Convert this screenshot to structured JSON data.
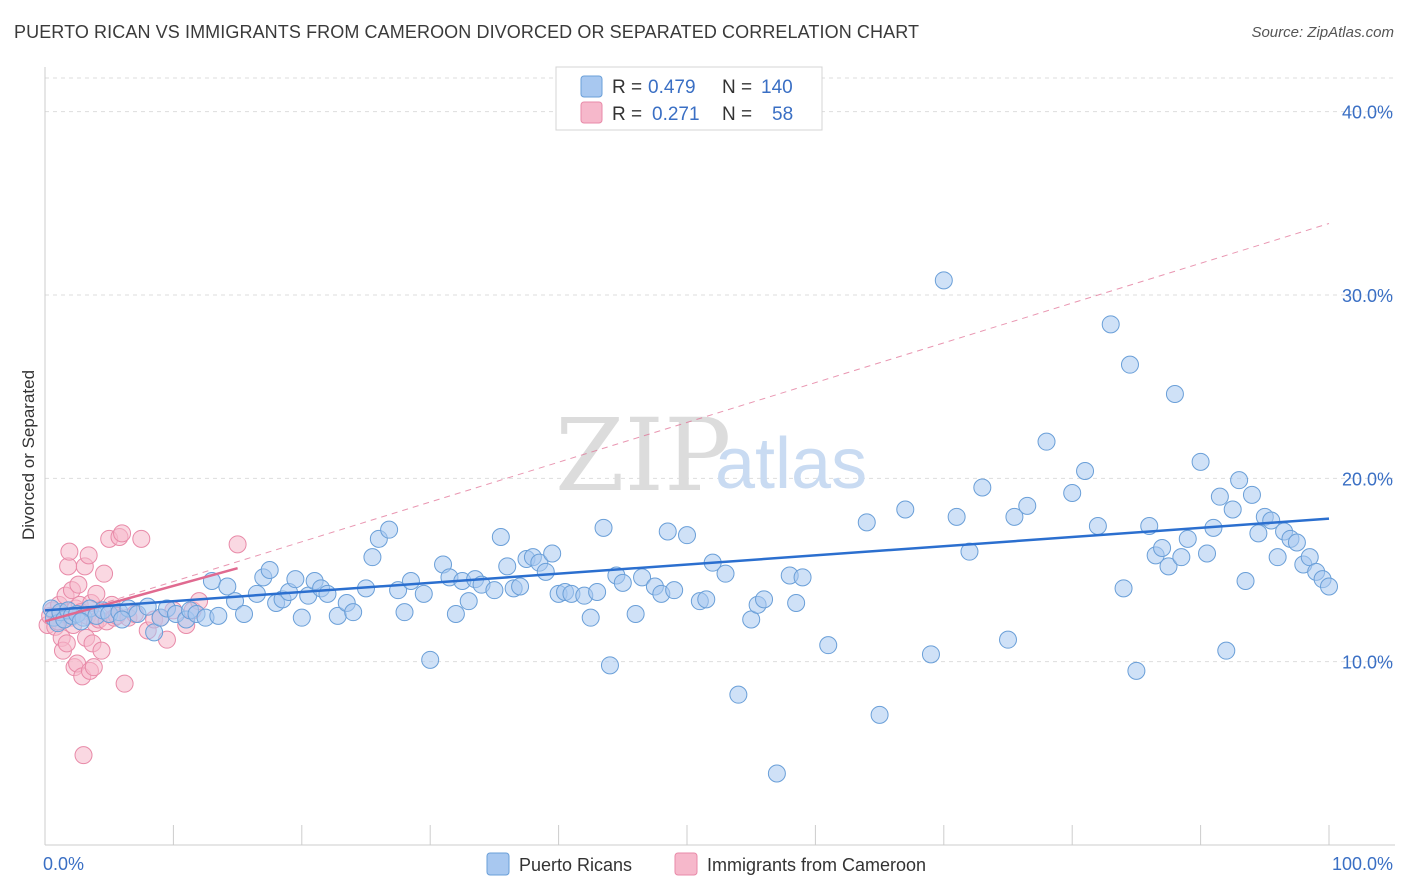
{
  "header": {
    "title": "PUERTO RICAN VS IMMIGRANTS FROM CAMEROON DIVORCED OR SEPARATED CORRELATION CHART",
    "source": "Source: ZipAtlas.com"
  },
  "watermark": {
    "zip": "ZIP",
    "atlas": "atlas"
  },
  "legend": {
    "rows": [
      {
        "r_label": "R =",
        "r_value": "0.479",
        "n_label": "N =",
        "n_value": "140",
        "color": "#a8c8f0"
      },
      {
        "r_label": "R =",
        "r_value": "0.271",
        "n_label": "N =",
        "n_value": "58",
        "color": "#f6b8cb"
      }
    ]
  },
  "bottom_legend": [
    {
      "label": "Puerto Ricans",
      "color": "#a8c8f0"
    },
    {
      "label": "Immigrants from Cameroon",
      "color": "#f6b8cb"
    }
  ],
  "colors": {
    "blue_fill": "#a8c8f0",
    "blue_stroke": "#6a9fd8",
    "blue_line": "#2b6fcf",
    "pink_fill": "#f6b8cb",
    "pink_stroke": "#e88aa8",
    "pink_line": "#e06a90",
    "grid": "#dddddd",
    "axis_text": "#3a6fc4"
  },
  "chart_data": {
    "type": "scatter",
    "title": "PUERTO RICAN VS IMMIGRANTS FROM CAMEROON DIVORCED OR SEPARATED CORRELATION CHART",
    "xlabel": "",
    "ylabel": "Divorced or Separated",
    "xlim": [
      0,
      100
    ],
    "ylim": [
      0,
      42
    ],
    "x_tick_labels": [
      "0.0%",
      "100.0%"
    ],
    "y_ticks": [
      10,
      20,
      30,
      40
    ],
    "y_tick_labels": [
      "10.0%",
      "20.0%",
      "30.0%",
      "40.0%"
    ],
    "grid": true,
    "legend_position": "top-center",
    "series": [
      {
        "name": "Puerto Ricans",
        "color": "#a8c8f0",
        "R": 0.479,
        "N": 140,
        "trend": {
          "x": [
            0,
            100
          ],
          "y": [
            12.8,
            17.8
          ]
        },
        "points": [
          [
            0.5,
            12.9
          ],
          [
            0.7,
            12.4
          ],
          [
            1.0,
            12.1
          ],
          [
            1.2,
            12.7
          ],
          [
            1.5,
            12.3
          ],
          [
            1.8,
            12.8
          ],
          [
            2.1,
            12.5
          ],
          [
            2.5,
            12.6
          ],
          [
            3.0,
            12.4
          ],
          [
            3.5,
            12.9
          ],
          [
            4.0,
            12.5
          ],
          [
            4.5,
            12.8
          ],
          [
            5.0,
            12.6
          ],
          [
            5.8,
            12.7
          ],
          [
            6.5,
            12.9
          ],
          [
            7.2,
            12.6
          ],
          [
            8.0,
            13.0
          ],
          [
            8.5,
            11.6
          ],
          [
            9.0,
            12.4
          ],
          [
            9.5,
            12.9
          ],
          [
            10.2,
            12.6
          ],
          [
            11.0,
            12.3
          ],
          [
            11.3,
            12.8
          ],
          [
            11.8,
            12.6
          ],
          [
            12.5,
            12.4
          ],
          [
            13.0,
            14.4
          ],
          [
            13.5,
            12.5
          ],
          [
            14.2,
            14.1
          ],
          [
            14.8,
            13.3
          ],
          [
            15.5,
            12.6
          ],
          [
            16.5,
            13.7
          ],
          [
            17.0,
            14.6
          ],
          [
            17.5,
            15.0
          ],
          [
            18.0,
            13.2
          ],
          [
            18.5,
            13.4
          ],
          [
            19.0,
            13.8
          ],
          [
            19.5,
            14.5
          ],
          [
            20.0,
            12.4
          ],
          [
            20.5,
            13.6
          ],
          [
            21.0,
            14.4
          ],
          [
            21.5,
            14.0
          ],
          [
            22.0,
            13.7
          ],
          [
            22.8,
            12.5
          ],
          [
            23.5,
            13.2
          ],
          [
            24.0,
            12.7
          ],
          [
            25.0,
            14.0
          ],
          [
            25.5,
            15.7
          ],
          [
            26.0,
            16.7
          ],
          [
            26.8,
            17.2
          ],
          [
            27.5,
            13.9
          ],
          [
            28.0,
            12.7
          ],
          [
            28.5,
            14.4
          ],
          [
            29.5,
            13.7
          ],
          [
            30.0,
            10.1
          ],
          [
            31.0,
            15.3
          ],
          [
            31.5,
            14.6
          ],
          [
            32.0,
            12.6
          ],
          [
            32.5,
            14.4
          ],
          [
            33.0,
            13.3
          ],
          [
            33.5,
            14.5
          ],
          [
            34.0,
            14.2
          ],
          [
            35.0,
            13.9
          ],
          [
            35.5,
            16.8
          ],
          [
            36.0,
            15.2
          ],
          [
            36.5,
            14.0
          ],
          [
            37.0,
            14.1
          ],
          [
            37.5,
            15.6
          ],
          [
            38.0,
            15.7
          ],
          [
            38.5,
            15.4
          ],
          [
            39.0,
            14.9
          ],
          [
            39.5,
            15.9
          ],
          [
            40.0,
            13.7
          ],
          [
            40.5,
            13.8
          ],
          [
            41.0,
            13.7
          ],
          [
            42.0,
            13.6
          ],
          [
            42.5,
            12.4
          ],
          [
            43.0,
            13.8
          ],
          [
            43.5,
            17.3
          ],
          [
            44.0,
            9.8
          ],
          [
            44.5,
            14.7
          ],
          [
            45.0,
            14.3
          ],
          [
            46.0,
            12.6
          ],
          [
            46.5,
            14.6
          ],
          [
            47.5,
            14.1
          ],
          [
            48.0,
            13.7
          ],
          [
            48.5,
            17.1
          ],
          [
            49.0,
            13.9
          ],
          [
            50.0,
            16.9
          ],
          [
            51.0,
            13.3
          ],
          [
            51.5,
            13.4
          ],
          [
            52.0,
            15.4
          ],
          [
            53.0,
            14.8
          ],
          [
            54.0,
            8.2
          ],
          [
            55.0,
            12.3
          ],
          [
            55.5,
            13.1
          ],
          [
            56.0,
            13.4
          ],
          [
            57.0,
            3.9
          ],
          [
            58.0,
            14.7
          ],
          [
            58.5,
            13.2
          ],
          [
            59.0,
            14.6
          ],
          [
            61.0,
            10.9
          ],
          [
            64.0,
            17.6
          ],
          [
            65.0,
            7.1
          ],
          [
            67.0,
            18.3
          ],
          [
            69.0,
            10.4
          ],
          [
            70.0,
            30.8
          ],
          [
            71.0,
            17.9
          ],
          [
            72.0,
            16.0
          ],
          [
            73.0,
            19.5
          ],
          [
            75.0,
            11.2
          ],
          [
            75.5,
            17.9
          ],
          [
            76.5,
            18.5
          ],
          [
            78.0,
            22.0
          ],
          [
            80.0,
            19.2
          ],
          [
            81.0,
            20.4
          ],
          [
            82.0,
            17.4
          ],
          [
            83.0,
            28.4
          ],
          [
            84.0,
            14.0
          ],
          [
            84.5,
            26.2
          ],
          [
            85.0,
            9.5
          ],
          [
            86.0,
            17.4
          ],
          [
            86.5,
            15.8
          ],
          [
            87.0,
            16.2
          ],
          [
            87.5,
            15.2
          ],
          [
            88.0,
            24.6
          ],
          [
            88.5,
            15.7
          ],
          [
            89.0,
            16.7
          ],
          [
            90.0,
            20.9
          ],
          [
            90.5,
            15.9
          ],
          [
            91.0,
            17.3
          ],
          [
            91.5,
            19.0
          ],
          [
            92.0,
            10.6
          ],
          [
            92.5,
            18.3
          ],
          [
            93.0,
            19.9
          ],
          [
            93.5,
            14.4
          ],
          [
            94.0,
            19.1
          ],
          [
            94.5,
            17.0
          ],
          [
            95.0,
            17.9
          ],
          [
            95.5,
            17.7
          ],
          [
            96.0,
            15.7
          ],
          [
            96.5,
            17.1
          ],
          [
            97.0,
            16.7
          ],
          [
            97.5,
            16.5
          ],
          [
            98.0,
            15.3
          ],
          [
            98.5,
            15.7
          ],
          [
            99.0,
            14.9
          ],
          [
            99.5,
            14.5
          ],
          [
            100.0,
            14.1
          ],
          [
            2.8,
            12.2
          ],
          [
            6.0,
            12.3
          ]
        ]
      },
      {
        "name": "Immigrants from Cameroon",
        "color": "#f6b8cb",
        "R": 0.271,
        "N": 58,
        "trend": {
          "x": [
            0,
            15
          ],
          "y": [
            12.2,
            15.1
          ]
        },
        "trend_dashed": {
          "x": [
            0,
            100
          ],
          "y": [
            12.2,
            33.9
          ]
        },
        "points": [
          [
            0.2,
            12.0
          ],
          [
            0.4,
            12.5
          ],
          [
            0.6,
            12.8
          ],
          [
            0.8,
            11.9
          ],
          [
            1.0,
            12.2
          ],
          [
            1.1,
            13.1
          ],
          [
            1.2,
            12.6
          ],
          [
            1.3,
            11.3
          ],
          [
            1.4,
            10.6
          ],
          [
            1.5,
            12.3
          ],
          [
            1.6,
            13.6
          ],
          [
            1.7,
            11.0
          ],
          [
            1.8,
            15.2
          ],
          [
            1.9,
            16.0
          ],
          [
            2.0,
            12.4
          ],
          [
            2.1,
            13.9
          ],
          [
            2.2,
            12.0
          ],
          [
            2.3,
            9.7
          ],
          [
            2.4,
            12.9
          ],
          [
            2.5,
            9.9
          ],
          [
            2.6,
            14.2
          ],
          [
            2.7,
            13.1
          ],
          [
            2.8,
            12.7
          ],
          [
            2.9,
            9.2
          ],
          [
            3.0,
            4.9
          ],
          [
            3.1,
            15.2
          ],
          [
            3.2,
            11.3
          ],
          [
            3.3,
            12.5
          ],
          [
            3.4,
            15.8
          ],
          [
            3.5,
            9.5
          ],
          [
            3.6,
            13.2
          ],
          [
            3.7,
            11.0
          ],
          [
            3.8,
            9.7
          ],
          [
            3.9,
            12.1
          ],
          [
            4.0,
            13.7
          ],
          [
            4.2,
            12.3
          ],
          [
            4.4,
            10.6
          ],
          [
            4.6,
            14.8
          ],
          [
            4.8,
            12.2
          ],
          [
            5.0,
            16.7
          ],
          [
            5.2,
            13.1
          ],
          [
            5.4,
            12.4
          ],
          [
            5.6,
            12.5
          ],
          [
            5.8,
            16.8
          ],
          [
            6.0,
            17.0
          ],
          [
            6.2,
            8.8
          ],
          [
            6.5,
            12.4
          ],
          [
            7.0,
            12.6
          ],
          [
            7.5,
            16.7
          ],
          [
            8.0,
            11.7
          ],
          [
            8.5,
            12.3
          ],
          [
            9.0,
            12.4
          ],
          [
            9.5,
            11.2
          ],
          [
            10.0,
            12.8
          ],
          [
            11.0,
            12.0
          ],
          [
            11.5,
            12.8
          ],
          [
            12.0,
            13.3
          ],
          [
            15.0,
            16.4
          ]
        ]
      }
    ]
  }
}
